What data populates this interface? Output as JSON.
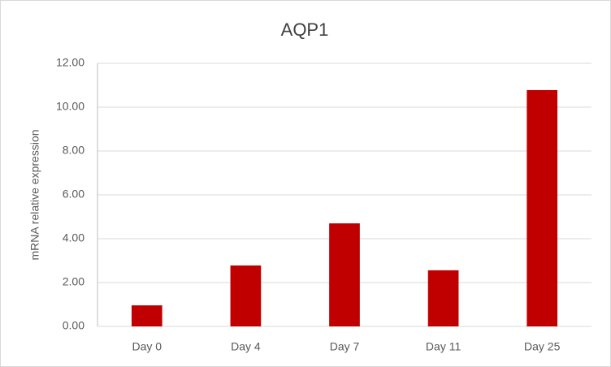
{
  "chart_data": {
    "type": "bar",
    "title": "AQP1",
    "y_label": "mRNA relative expression",
    "categories": [
      "Day 0",
      "Day 4",
      "Day 7",
      "Day 11",
      "Day 25"
    ],
    "values": [
      0.96,
      2.78,
      4.7,
      2.56,
      10.78
    ],
    "color": "#c00000",
    "ylim": [
      0,
      12
    ],
    "yticks": [
      {
        "value": 0,
        "label": "0.00"
      },
      {
        "value": 2,
        "label": "2.00"
      },
      {
        "value": 4,
        "label": "4.00"
      },
      {
        "value": 6,
        "label": "6.00"
      },
      {
        "value": 8,
        "label": "8.00"
      },
      {
        "value": 10,
        "label": "10.00"
      },
      {
        "value": 12,
        "label": "12.00"
      }
    ],
    "grid": true
  }
}
